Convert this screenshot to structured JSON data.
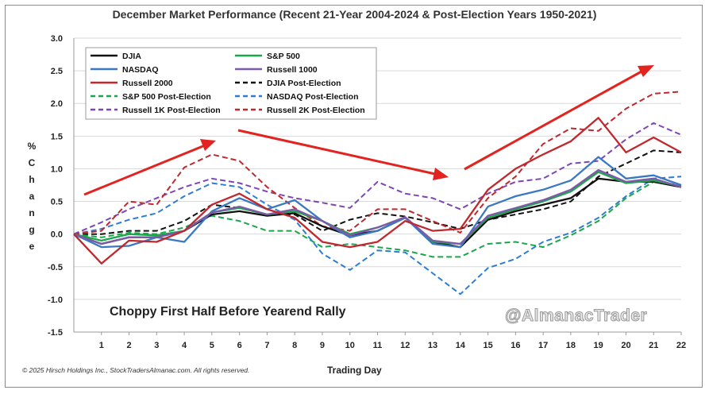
{
  "chart_data": {
    "type": "line",
    "title": "December Market Performance (Recent 21-Year 2004-2024 & Post-Election Years 1950-2021)",
    "xlabel": "Trading Day",
    "ylabel_letters": [
      "%",
      "C",
      "h",
      "a",
      "n",
      "g",
      "e"
    ],
    "x": [
      0,
      1,
      2,
      3,
      4,
      5,
      6,
      7,
      8,
      9,
      10,
      11,
      12,
      13,
      14,
      15,
      16,
      17,
      18,
      19,
      20,
      21,
      22
    ],
    "x_tick_labels": [
      "1",
      "2",
      "3",
      "4",
      "5",
      "6",
      "7",
      "8",
      "9",
      "10",
      "11",
      "12",
      "13",
      "14",
      "15",
      "16",
      "17",
      "18",
      "19",
      "20",
      "21",
      "22"
    ],
    "y_ticks": [
      "3.0",
      "2.5",
      "2.0",
      "1.5",
      "1.0",
      "0.5",
      "0.0",
      "-0.5",
      "-1.0",
      "-1.5"
    ],
    "ylim": [
      -1.5,
      3.0
    ],
    "legend_position": "top-left",
    "annotation": "Choppy First Half Before Yearend Rally",
    "watermark": "@AlmanacTrader",
    "copyright": "© 2025 Hirsch Holdings Inc., StockTradersAlmanac.com. All rights reserved.",
    "series": [
      {
        "name": "DJIA",
        "color": "#111111",
        "dash": "solid",
        "values": [
          0,
          -0.15,
          -0.05,
          -0.05,
          0.05,
          0.3,
          0.35,
          0.28,
          0.32,
          0.12,
          -0.02,
          0.05,
          0.25,
          -0.12,
          -0.2,
          0.22,
          0.35,
          0.45,
          0.55,
          0.85,
          0.8,
          0.8,
          0.72
        ]
      },
      {
        "name": "S&P 500",
        "color": "#1aa64a",
        "dash": "solid",
        "values": [
          0,
          -0.1,
          0,
          -0.02,
          0.05,
          0.33,
          0.4,
          0.3,
          0.35,
          0.2,
          0,
          0.1,
          0.25,
          -0.12,
          -0.15,
          0.25,
          0.38,
          0.5,
          0.65,
          0.95,
          0.78,
          0.82,
          0.73
        ]
      },
      {
        "name": "NASDAQ",
        "color": "#3a78c4",
        "dash": "solid",
        "values": [
          0,
          -0.2,
          -0.18,
          -0.05,
          -0.12,
          0.35,
          0.55,
          0.38,
          0.52,
          0.2,
          -0.05,
          0.05,
          0.25,
          -0.15,
          -0.2,
          0.42,
          0.58,
          0.68,
          0.82,
          1.18,
          0.85,
          0.9,
          0.75
        ]
      },
      {
        "name": "Russell 1000",
        "color": "#7d5aa8",
        "dash": "solid",
        "values": [
          0,
          -0.15,
          -0.05,
          -0.05,
          0.05,
          0.33,
          0.42,
          0.3,
          0.38,
          0.2,
          -0.02,
          0.1,
          0.26,
          -0.1,
          -0.15,
          0.28,
          0.4,
          0.52,
          0.68,
          0.98,
          0.8,
          0.85,
          0.72
        ]
      },
      {
        "name": "Russell 2000",
        "color": "#c0282d",
        "dash": "solid",
        "values": [
          0,
          -0.45,
          -0.1,
          -0.12,
          0.05,
          0.45,
          0.62,
          0.38,
          0.25,
          -0.12,
          -0.2,
          -0.12,
          0.2,
          0.05,
          0.08,
          0.68,
          1,
          1.22,
          1.42,
          1.78,
          1.25,
          1.48,
          1.25
        ]
      },
      {
        "name": "DJIA Post-Election",
        "color": "#111111",
        "dash": "dashed",
        "values": [
          0,
          0,
          0.05,
          0.05,
          0.2,
          0.45,
          0.4,
          0.3,
          0.3,
          0.05,
          0.22,
          0.32,
          0.27,
          0.18,
          0.08,
          0.22,
          0.3,
          0.38,
          0.5,
          0.88,
          1.08,
          1.28,
          1.25
        ]
      },
      {
        "name": "S&P 500 Post-Election",
        "color": "#1aa64a",
        "dash": "dashed",
        "values": [
          0,
          -0.05,
          0.02,
          0,
          0.1,
          0.28,
          0.2,
          0.05,
          0.05,
          -0.2,
          -0.15,
          -0.2,
          -0.25,
          -0.35,
          -0.35,
          -0.15,
          -0.12,
          -0.2,
          -0.02,
          0.2,
          0.55,
          0.8,
          0.75
        ]
      },
      {
        "name": "NASDAQ Post-Election",
        "color": "#2d7dd2",
        "dash": "dashed",
        "values": [
          0,
          0.08,
          0.22,
          0.32,
          0.58,
          0.78,
          0.72,
          0.45,
          0.22,
          -0.3,
          -0.55,
          -0.25,
          -0.28,
          -0.6,
          -0.92,
          -0.52,
          -0.38,
          -0.12,
          0.02,
          0.25,
          0.58,
          0.85,
          0.88
        ]
      },
      {
        "name": "Russell 1K Post-Election",
        "color": "#7d45b5",
        "dash": "dashed",
        "values": [
          0,
          0.18,
          0.38,
          0.55,
          0.72,
          0.85,
          0.78,
          0.65,
          0.55,
          0.48,
          0.4,
          0.8,
          0.62,
          0.55,
          0.38,
          0.62,
          0.8,
          0.85,
          1.08,
          1.12,
          1.45,
          1.7,
          1.52
        ]
      },
      {
        "name": "Russell 2K Post-Election",
        "color": "#c0282d",
        "dash": "dashed",
        "values": [
          0,
          0.05,
          0.5,
          0.45,
          1.02,
          1.22,
          1.12,
          0.72,
          0.4,
          0.12,
          0.05,
          0.38,
          0.38,
          0.2,
          0.02,
          0.55,
          0.88,
          1.38,
          1.62,
          1.58,
          1.92,
          2.15,
          2.18
        ]
      }
    ]
  }
}
